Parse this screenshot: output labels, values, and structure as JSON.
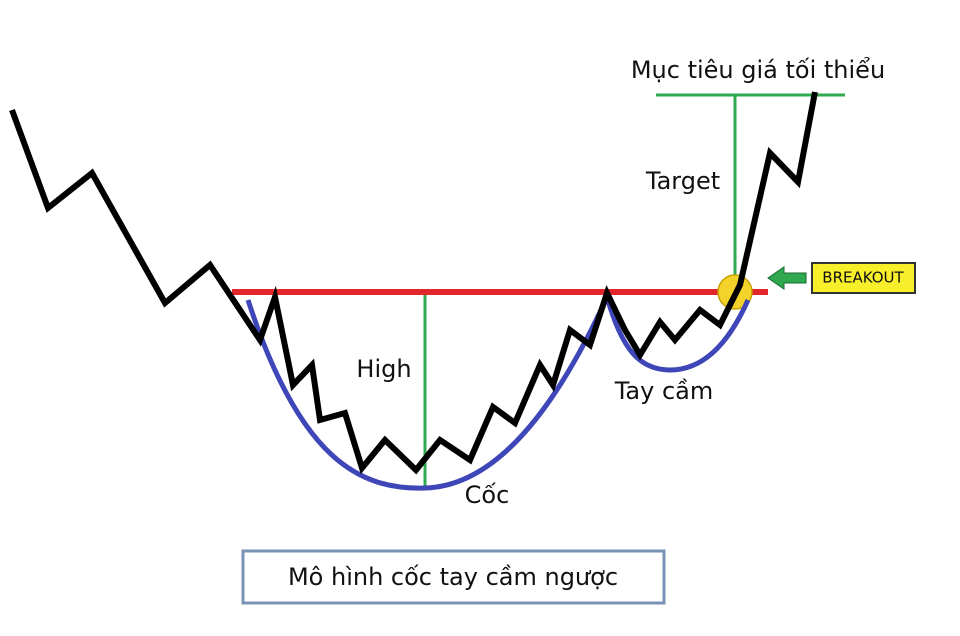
{
  "labels": {
    "target_title": "Mục tiêu giá tối thiểu",
    "target": "Target",
    "breakout": "BREAKOUT",
    "high": "High",
    "handle": "Tay cầm",
    "cup": "Cốc",
    "caption": "Mô hình cốc tay cầm ngược"
  }
}
